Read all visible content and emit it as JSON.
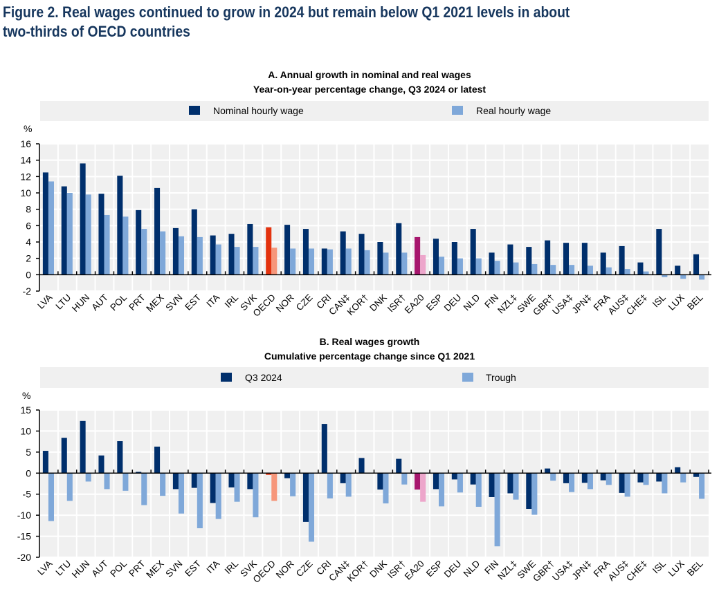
{
  "figure": {
    "title_line1": "Figure 2. Real wages continued to grow in 2024 but remain below Q1 2021 levels in about",
    "title_line2": "two-thirds of OECD countries"
  },
  "colors": {
    "navy": "#002F6C",
    "light_blue": "#7FA8D9",
    "oecd_dark": "#E3330F",
    "oecd_light": "#F6967A",
    "ea20_dark": "#A7176E",
    "ea20_light": "#EDA6CB",
    "plot_bg": "#F0F0F0",
    "legend_bg": "#F0F0F0"
  },
  "chart_data": [
    {
      "type": "bar",
      "title": "A. Annual growth in nominal and real wages",
      "subtitle": "Year-on-year percentage change, Q3 2024 or latest",
      "ylabel": "%",
      "xlabel": "",
      "ylim": [
        -2,
        16
      ],
      "yticks": [
        16,
        14,
        12,
        10,
        8,
        6,
        4,
        2,
        0,
        -2
      ],
      "grid": true,
      "legend_position": "top",
      "categories": [
        "LVA",
        "LTU",
        "HUN",
        "AUT",
        "POL",
        "PRT",
        "MEX",
        "SVN",
        "EST",
        "ITA",
        "IRL",
        "SVK",
        "OECD",
        "NOR",
        "CZE",
        "CRI",
        "CAN‡",
        "KOR†",
        "DNK",
        "ISR†",
        "EA20",
        "ESP",
        "DEU",
        "NLD",
        "FIN",
        "NZL‡",
        "SWE",
        "GBR†",
        "USA‡",
        "JPN‡",
        "FRA",
        "AUS‡",
        "CHE‡",
        "ISL",
        "LUX",
        "BEL"
      ],
      "series": [
        {
          "name": "Nominal hourly wage",
          "values": [
            12.5,
            10.8,
            13.6,
            9.9,
            12.1,
            7.9,
            10.6,
            5.7,
            8.0,
            4.8,
            5.0,
            6.2,
            5.8,
            6.1,
            5.6,
            3.2,
            5.3,
            5.0,
            4.0,
            6.3,
            4.6,
            4.4,
            4.0,
            5.6,
            2.7,
            3.7,
            3.4,
            4.2,
            3.9,
            3.9,
            2.7,
            3.5,
            1.5,
            5.6,
            1.1,
            2.5
          ]
        },
        {
          "name": "Real hourly wage",
          "values": [
            11.4,
            10.0,
            9.8,
            7.3,
            7.1,
            5.6,
            5.3,
            4.7,
            4.6,
            3.7,
            3.4,
            3.4,
            3.3,
            3.2,
            3.2,
            3.1,
            3.2,
            3.0,
            2.7,
            2.7,
            2.4,
            2.2,
            2.0,
            2.0,
            1.7,
            1.5,
            1.3,
            1.2,
            1.2,
            1.1,
            0.9,
            0.7,
            0.4,
            -0.3,
            -0.5,
            -0.6
          ]
        }
      ]
    },
    {
      "type": "bar",
      "title": "B. Real wages growth",
      "subtitle": "Cumulative percentage change since Q1 2021",
      "ylabel": "%",
      "xlabel": "",
      "ylim": [
        -20,
        15
      ],
      "yticks": [
        15,
        10,
        5,
        0,
        -5,
        -10,
        -15,
        -20
      ],
      "grid": true,
      "legend_position": "top",
      "categories": [
        "LVA",
        "LTU",
        "HUN",
        "AUT",
        "POL",
        "PRT",
        "MEX",
        "SVN",
        "EST",
        "ITA",
        "IRL",
        "SVK",
        "OECD",
        "NOR",
        "CZE",
        "CRI",
        "CAN‡",
        "KOR†",
        "DNK",
        "ISR†",
        "EA20",
        "ESP",
        "DEU",
        "NLD",
        "FIN",
        "NZL‡",
        "SWE",
        "GBR†",
        "USA‡",
        "JPN‡",
        "FRA",
        "AUS‡",
        "CHE‡",
        "ISL",
        "LUX",
        "BEL"
      ],
      "series": [
        {
          "name": "Q3 2024",
          "values": [
            5.3,
            8.4,
            12.4,
            4.2,
            7.6,
            0.3,
            6.3,
            -3.8,
            -3.5,
            -7.1,
            -3.4,
            -3.8,
            -0.4,
            -1.2,
            -11.6,
            11.7,
            -2.4,
            3.6,
            -3.9,
            3.4,
            -3.9,
            -3.8,
            -1.5,
            -2.7,
            -5.7,
            -4.8,
            -8.5,
            1.1,
            -2.4,
            -2.3,
            -1.7,
            -4.7,
            -2.2,
            -2.0,
            1.4,
            -0.9
          ]
        },
        {
          "name": "Trough",
          "values": [
            -11.4,
            -6.6,
            -2.0,
            -3.8,
            -4.2,
            -7.6,
            -5.4,
            -9.6,
            -13.1,
            -10.9,
            -6.8,
            -10.5,
            -6.6,
            -5.5,
            -16.3,
            -6.0,
            -5.6,
            -0.1,
            -7.2,
            -2.7,
            -6.8,
            -7.9,
            -4.6,
            -8.0,
            -17.4,
            -6.3,
            -9.9,
            -1.8,
            -4.5,
            -3.8,
            -2.8,
            -5.6,
            -2.8,
            -4.8,
            -2.2,
            -6.1
          ]
        }
      ]
    }
  ]
}
